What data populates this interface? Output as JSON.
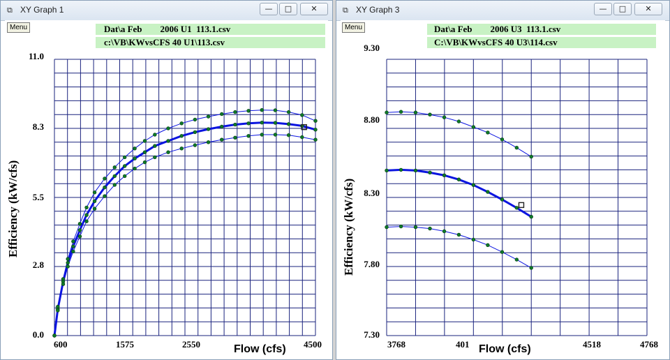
{
  "window1": {
    "title": "XY Graph 1",
    "buttons": {
      "minimize": "—",
      "maximize": "□",
      "close": "✕"
    },
    "menu_label": "Menu",
    "caption1": "Dat\\a Feb        2006 U1  113.1.csv",
    "caption2": "c:\\VB\\KWvsCFS 40 U1\\113.csv",
    "y_axis_label": "Efficiency (kW/cfs)",
    "x_axis_label": "Flow (cfs)",
    "y_tick_labels": [
      "11.0",
      "8.3",
      "5.5",
      "2.8",
      "0.0"
    ],
    "x_tick_labels": [
      "600",
      "1575",
      "2550",
      "4500"
    ]
  },
  "window2": {
    "title": "XY Graph 3",
    "buttons": {
      "minimize": "—",
      "maximize": "□",
      "close": "✕"
    },
    "menu_label": "Menu",
    "caption1": "Dat\\a Feb        2006 U3  113.1.csv",
    "caption2": "C:\\VB\\KWvsCFS 40 U3\\114.csv",
    "y_axis_label": "Efficiency (kW/cfs)",
    "x_axis_label": "Flow (cfs)",
    "y_tick_labels": [
      "9.30",
      "8.80",
      "8.30",
      "7.80",
      "7.30"
    ],
    "x_tick_labels": [
      "3768",
      "401",
      "4518",
      "4768"
    ]
  },
  "colors": {
    "grid": "#1a237e",
    "curve": "#0b14e0",
    "marker": "#0f7a28",
    "caption_bg": "#c8f2c4"
  },
  "chart_data": [
    {
      "type": "line",
      "xlim": [
        600,
        4500
      ],
      "ylim": [
        0,
        11
      ],
      "grid": true,
      "grid_divisions": {
        "x": 20,
        "y": 20
      },
      "marker_series": [
        0,
        1,
        2
      ],
      "series": [
        {
          "width": 1,
          "x": [
            600,
            650,
            730,
            800,
            880,
            980,
            1080,
            1200,
            1350,
            1500,
            1650,
            1800,
            1950,
            2100,
            2300,
            2500,
            2700,
            2900,
            3100,
            3300,
            3500,
            3700,
            3900,
            4100,
            4300,
            4500
          ],
          "y": [
            0.0,
            1.15,
            2.25,
            3.05,
            3.75,
            4.45,
            5.1,
            5.7,
            6.25,
            6.7,
            7.1,
            7.45,
            7.75,
            8.0,
            8.25,
            8.45,
            8.6,
            8.72,
            8.82,
            8.9,
            8.95,
            8.98,
            8.97,
            8.9,
            8.78,
            8.55
          ]
        },
        {
          "width": 3,
          "x": [
            600,
            650,
            730,
            800,
            880,
            980,
            1080,
            1200,
            1350,
            1500,
            1650,
            1800,
            1950,
            2100,
            2300,
            2500,
            2700,
            2900,
            3100,
            3300,
            3500,
            3700,
            3900,
            4100,
            4300,
            4500
          ],
          "y": [
            0.0,
            1.05,
            2.15,
            2.9,
            3.55,
            4.2,
            4.8,
            5.35,
            5.9,
            6.35,
            6.75,
            7.05,
            7.3,
            7.55,
            7.75,
            7.95,
            8.1,
            8.22,
            8.32,
            8.4,
            8.45,
            8.48,
            8.47,
            8.42,
            8.35,
            8.2
          ]
        },
        {
          "width": 1,
          "x": [
            600,
            650,
            730,
            800,
            880,
            980,
            1080,
            1200,
            1350,
            1500,
            1650,
            1800,
            1950,
            2100,
            2300,
            2500,
            2700,
            2900,
            3100,
            3300,
            3500,
            3700,
            3900,
            4100,
            4300,
            4500
          ],
          "y": [
            0.0,
            1.0,
            2.05,
            2.75,
            3.35,
            3.95,
            4.55,
            5.05,
            5.55,
            6.0,
            6.35,
            6.65,
            6.9,
            7.1,
            7.3,
            7.45,
            7.58,
            7.7,
            7.8,
            7.88,
            7.95,
            8.0,
            8.0,
            7.98,
            7.9,
            7.8
          ]
        }
      ],
      "marker_squares": [
        {
          "x": 4330,
          "y": 8.3
        }
      ]
    },
    {
      "type": "line",
      "xlim": [
        3643,
        4768
      ],
      "ylim": [
        7.3,
        9.3
      ],
      "grid": true,
      "grid_divisions": {
        "x": 9,
        "y": 20
      },
      "marker_series": [
        0,
        1,
        2
      ],
      "series": [
        {
          "width": 1,
          "x": [
            3643,
            3705,
            3768,
            3830,
            3892,
            3955,
            4018,
            4080,
            4142,
            4205,
            4268
          ],
          "y": [
            8.915,
            8.92,
            8.915,
            8.9,
            8.88,
            8.85,
            8.81,
            8.77,
            8.72,
            8.66,
            8.595
          ]
        },
        {
          "width": 3,
          "x": [
            3643,
            3705,
            3768,
            3830,
            3892,
            3955,
            4018,
            4080,
            4142,
            4205,
            4268
          ],
          "y": [
            8.495,
            8.5,
            8.495,
            8.48,
            8.46,
            8.43,
            8.39,
            8.34,
            8.285,
            8.225,
            8.16
          ]
        },
        {
          "width": 1,
          "x": [
            3643,
            3705,
            3768,
            3830,
            3892,
            3955,
            4018,
            4080,
            4142,
            4205,
            4268
          ],
          "y": [
            8.085,
            8.09,
            8.085,
            8.075,
            8.055,
            8.03,
            7.995,
            7.955,
            7.905,
            7.85,
            7.79
          ]
        }
      ],
      "marker_squares": [
        {
          "x": 4225,
          "y": 8.245
        }
      ]
    }
  ]
}
